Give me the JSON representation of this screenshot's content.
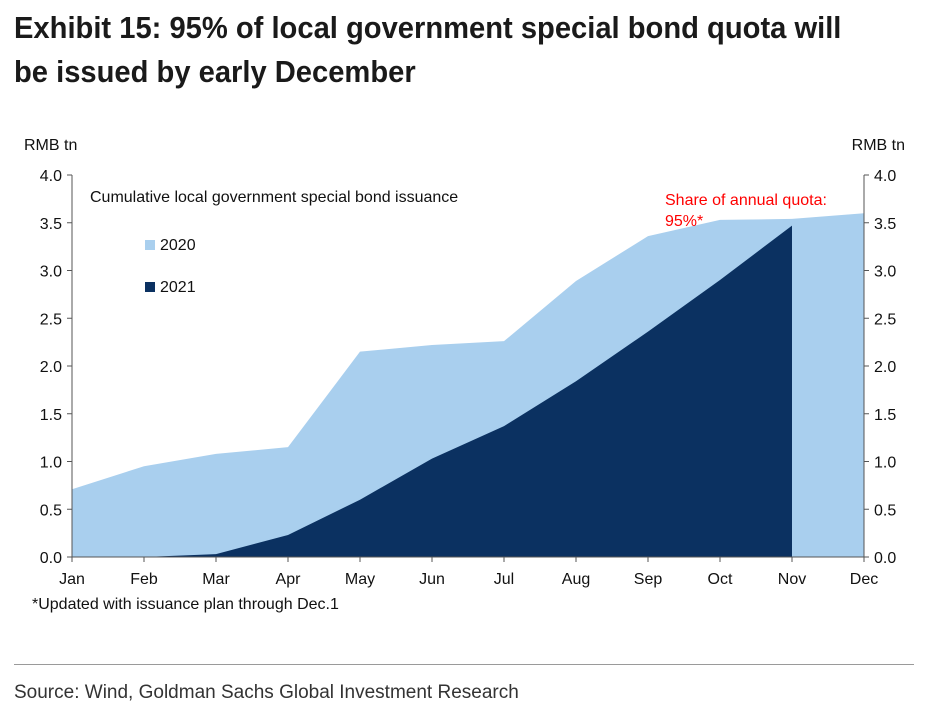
{
  "title": "Exhibit 15: 95% of local government special bond quota will be issued by early December",
  "footnote": "*Updated with issuance plan through Dec.1",
  "source": "Source: Wind, Goldman Sachs Global Investment Research",
  "chart_data": {
    "type": "area",
    "title": "Cumulative local government special bond issuance",
    "left_axis_unit": "RMB tn",
    "right_axis_unit": "RMB tn",
    "categories": [
      "Jan",
      "Feb",
      "Mar",
      "Apr",
      "May",
      "Jun",
      "Jul",
      "Aug",
      "Sep",
      "Oct",
      "Nov",
      "Dec"
    ],
    "ylim": [
      0,
      4
    ],
    "yticks": [
      "0.0",
      "0.5",
      "1.0",
      "1.5",
      "2.0",
      "2.5",
      "3.0",
      "3.5",
      "4.0"
    ],
    "series": [
      {
        "name": "2020",
        "color": "#a9cfee",
        "values": [
          0.71,
          0.95,
          1.08,
          1.15,
          2.15,
          2.22,
          2.26,
          2.89,
          3.36,
          3.53,
          3.54,
          3.6
        ]
      },
      {
        "name": "2021",
        "color": "#0b3161",
        "values": [
          0.0,
          0.0,
          0.03,
          0.23,
          0.6,
          1.03,
          1.37,
          1.84,
          2.36,
          2.9,
          3.47,
          null
        ]
      }
    ],
    "annotation": {
      "line1": "Share of annual quota:",
      "line2": "95%*",
      "color": "#ff0000"
    },
    "legend_position": "top-left",
    "grid": false
  }
}
